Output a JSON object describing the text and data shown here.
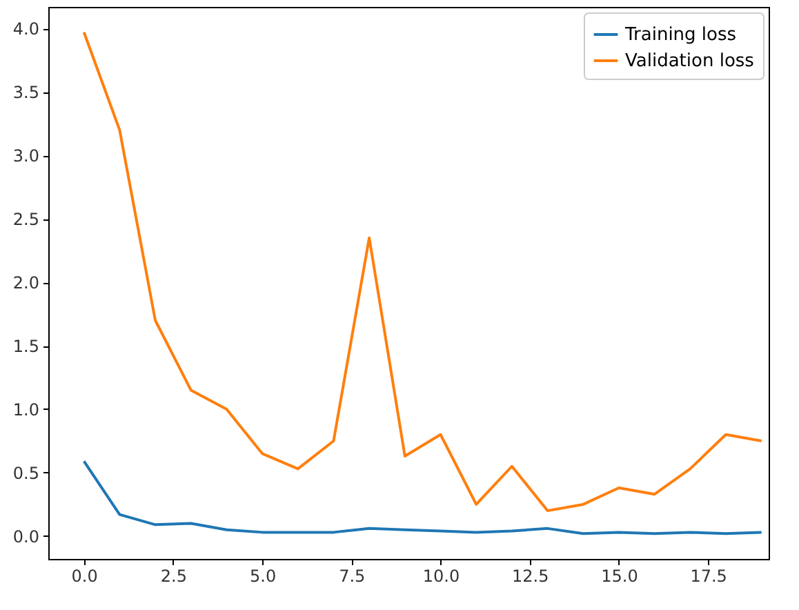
{
  "chart_data": {
    "type": "line",
    "x": [
      0,
      1,
      2,
      3,
      4,
      5,
      6,
      7,
      8,
      9,
      10,
      11,
      12,
      13,
      14,
      15,
      16,
      17,
      18,
      19
    ],
    "series": [
      {
        "name": "Training loss",
        "color": "#1f77b4",
        "values": [
          0.59,
          0.17,
          0.09,
          0.1,
          0.05,
          0.03,
          0.03,
          0.03,
          0.06,
          0.05,
          0.04,
          0.03,
          0.04,
          0.06,
          0.02,
          0.03,
          0.02,
          0.03,
          0.02,
          0.03
        ]
      },
      {
        "name": "Validation loss",
        "color": "#ff7f0e",
        "values": [
          3.97,
          3.2,
          1.7,
          1.15,
          1.0,
          0.65,
          0.53,
          0.75,
          2.35,
          0.63,
          0.8,
          0.25,
          0.55,
          0.2,
          0.25,
          0.38,
          0.33,
          0.53,
          0.8,
          0.75
        ]
      }
    ],
    "xlim": [
      -1,
      19.2
    ],
    "xticks": [
      {
        "value": 0,
        "label": "0.0"
      },
      {
        "value": 2.5,
        "label": "2.5"
      },
      {
        "value": 5,
        "label": "5.0"
      },
      {
        "value": 7.5,
        "label": "7.5"
      },
      {
        "value": 10,
        "label": "10.0"
      },
      {
        "value": 12.5,
        "label": "12.5"
      },
      {
        "value": 15,
        "label": "15.0"
      },
      {
        "value": 17.5,
        "label": "17.5"
      }
    ],
    "ylim": [
      -0.18,
      4.17
    ],
    "yticks": [
      {
        "value": 0,
        "label": "0.0"
      },
      {
        "value": 0.5,
        "label": "0.5"
      },
      {
        "value": 1,
        "label": "1.0"
      },
      {
        "value": 1.5,
        "label": "1.5"
      },
      {
        "value": 2,
        "label": "2.0"
      },
      {
        "value": 2.5,
        "label": "2.5"
      },
      {
        "value": 3,
        "label": "3.0"
      },
      {
        "value": 3.5,
        "label": "3.5"
      },
      {
        "value": 4,
        "label": "4.0"
      }
    ],
    "grid": false,
    "legend": "top right",
    "marker": "none",
    "line_style": "solid"
  }
}
